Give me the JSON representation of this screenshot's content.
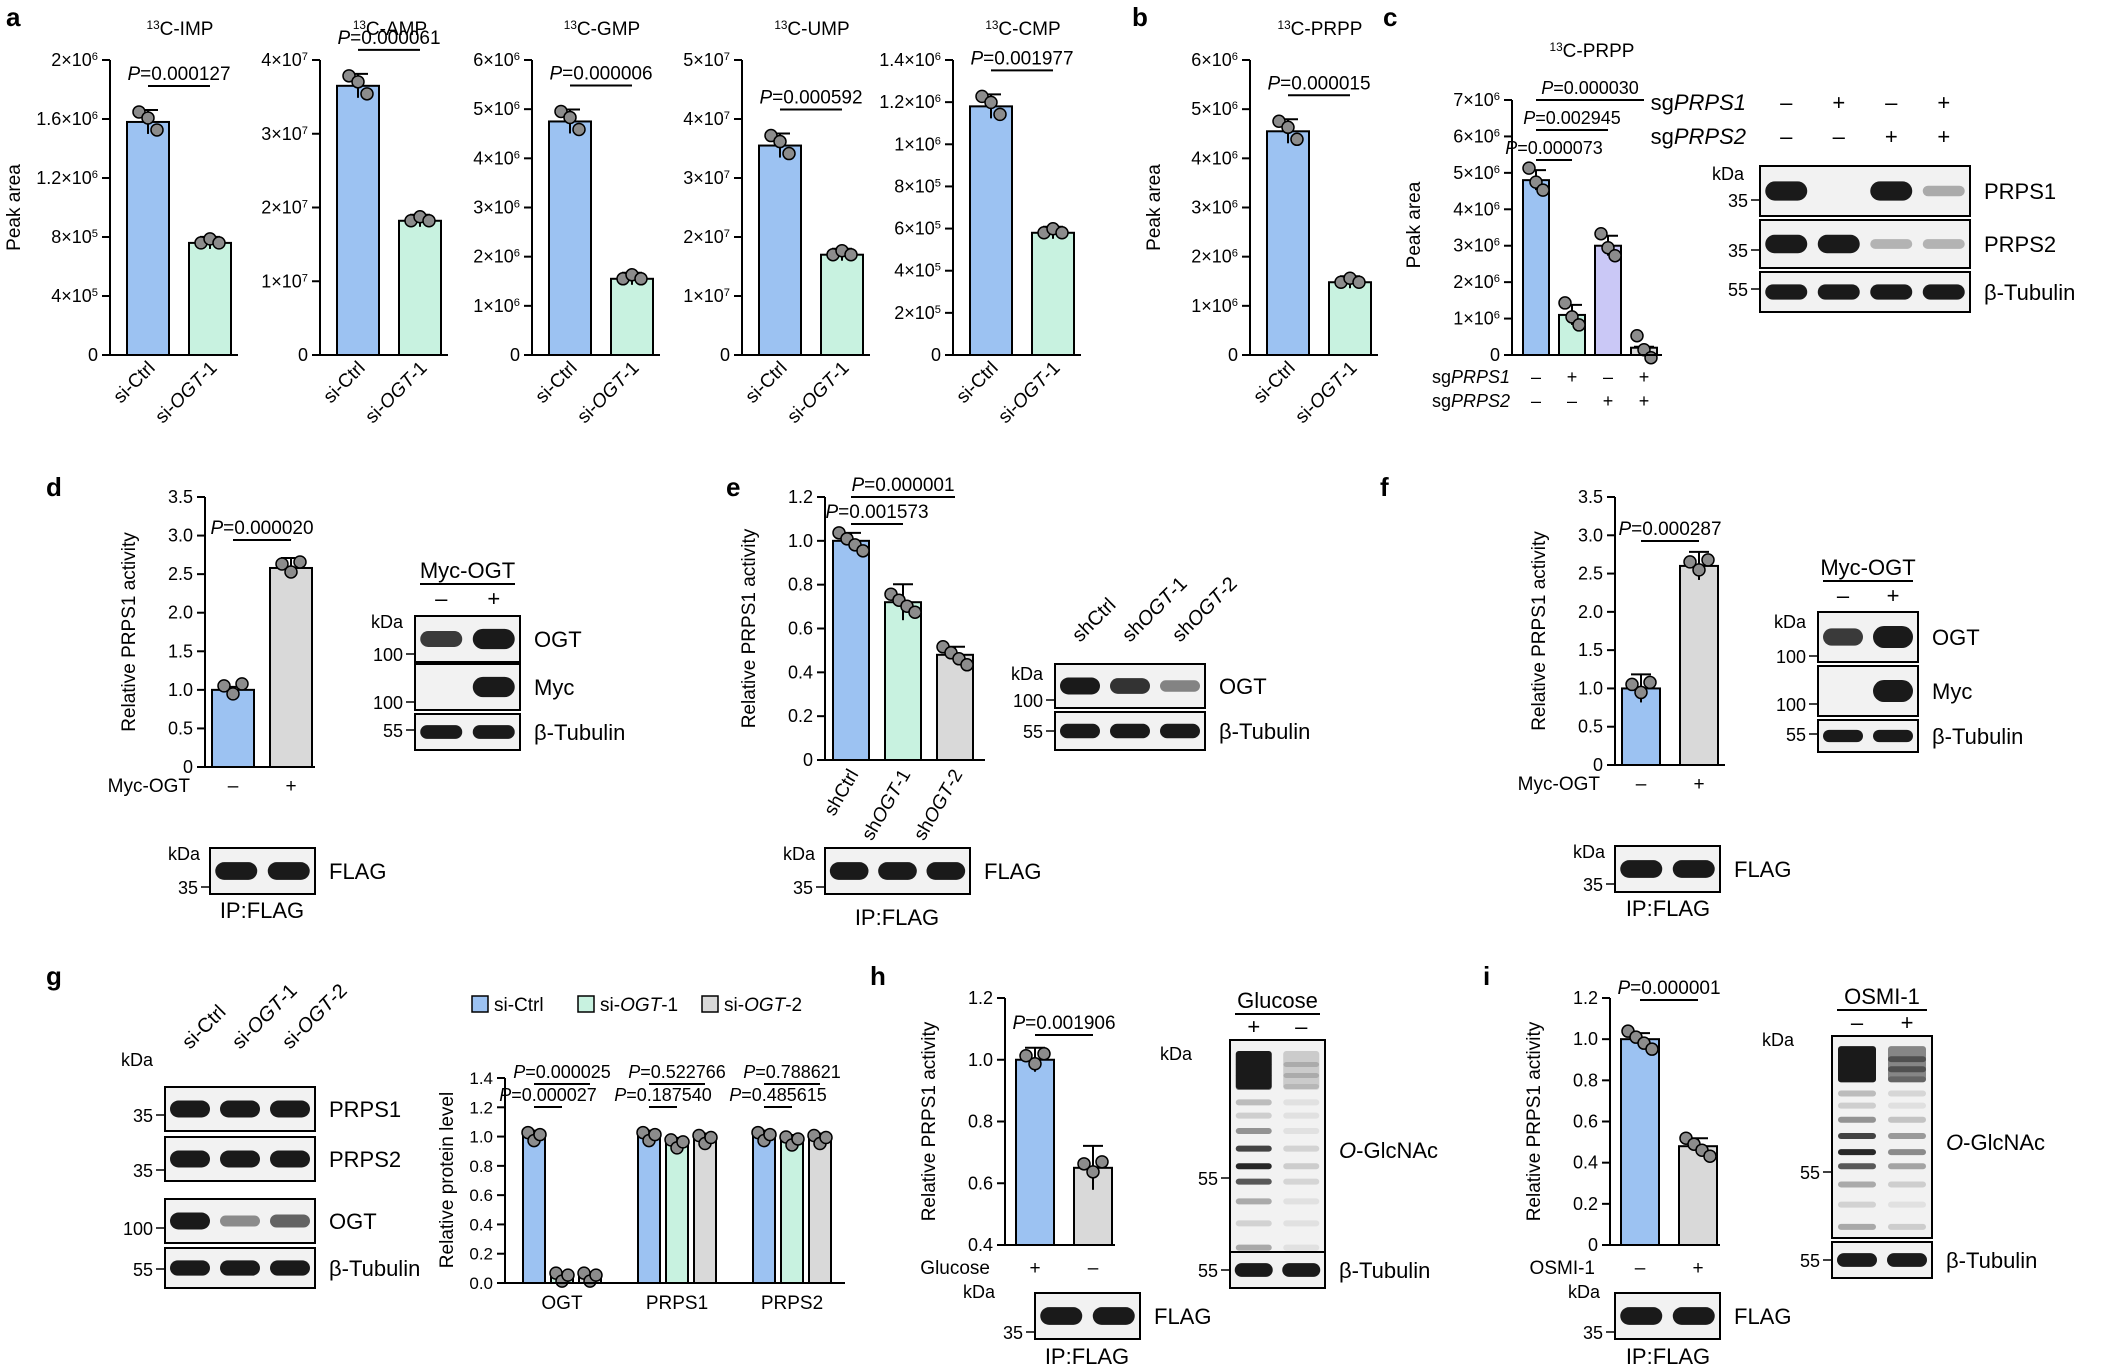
{
  "colors": {
    "blue": "#9cc2f2",
    "green": "#c8f2e0",
    "purple": "#cac8f6",
    "gray": "#d9d9d9",
    "band": "#1a1a1a",
    "blotBg": "#f2f2f2"
  },
  "texts": {
    "peak_area": "Peak area",
    "rel_prps1": "Relative PRPS1 activity",
    "rel_protein": "Relative protein level",
    "kda": "kDa",
    "ip_flag": "IP:FLAG",
    "minus": "–",
    "plus": "+",
    "sg_prefix": "sg",
    "gene_prps1": "PRPS1",
    "gene_prps2": "PRPS2",
    "si_prefix": "si-",
    "ogt_gene": "OGT",
    "ogt1_suffix": "-1",
    "ogt2_suffix": "-2",
    "sh_prefix": "sh",
    "o_prefix": "O",
    "glcnac_suffix": "-GlcNAc",
    "p_italic": "P"
  },
  "blot_labels": {
    "prps1": "PRPS1",
    "prps2": "PRPS2",
    "tubulin": "β-Tubulin",
    "ogt": "OGT",
    "myc": "Myc",
    "flag": "FLAG",
    "myc_ogt": "Myc-OGT",
    "glucose": "Glucose",
    "osmi1": "OSMI-1"
  },
  "mw": {
    "m35": "35",
    "m55": "55",
    "m100": "100"
  },
  "panel_letters": {
    "a": "a",
    "b": "b",
    "c": "c",
    "d": "d",
    "e": "e",
    "f": "f",
    "g": "g",
    "h": "h",
    "i": "i"
  },
  "chart_data": [
    {
      "id": "a1",
      "type": "bar",
      "title": "13C-IMP",
      "title_sup": "13",
      "title_main": "C-IMP",
      "ylabel": "Peak area",
      "categories": [
        "si-Ctrl",
        "si-OGT-1"
      ],
      "values": [
        1.58,
        0.76
      ],
      "unit": "×10^6",
      "ylim": [
        0,
        2
      ],
      "ticks": [
        "0",
        "4×10⁵",
        "8×10⁵",
        "1.2×10⁶",
        "1.6×10⁶",
        "2×10⁶"
      ],
      "p_values": [
        "=0.000127"
      ]
    },
    {
      "id": "a2",
      "type": "bar",
      "title": "13C-AMP",
      "title_sup": "13",
      "title_main": "C-AMP",
      "categories": [
        "si-Ctrl",
        "si-OGT-1"
      ],
      "values": [
        3.65,
        1.82
      ],
      "unit": "×10^7",
      "ylim": [
        0,
        4
      ],
      "ticks": [
        "0",
        "1×10⁷",
        "2×10⁷",
        "3×10⁷",
        "4×10⁷"
      ],
      "p_values": [
        "=0.000061"
      ]
    },
    {
      "id": "a3",
      "type": "bar",
      "title": "13C-GMP",
      "title_sup": "13",
      "title_main": "C-GMP",
      "categories": [
        "si-Ctrl",
        "si-OGT-1"
      ],
      "values": [
        4.75,
        1.55
      ],
      "unit": "×10^6",
      "ylim": [
        0,
        6
      ],
      "ticks": [
        "0",
        "1×10⁶",
        "2×10⁶",
        "3×10⁶",
        "4×10⁶",
        "5×10⁶",
        "6×10⁶"
      ],
      "p_values": [
        "=0.000006"
      ]
    },
    {
      "id": "a4",
      "type": "bar",
      "title": "13C-UMP",
      "title_sup": "13",
      "title_main": "C-UMP",
      "categories": [
        "si-Ctrl",
        "si-OGT-1"
      ],
      "values": [
        3.55,
        1.7
      ],
      "unit": "×10^7",
      "ylim": [
        0,
        5
      ],
      "ticks": [
        "0",
        "1×10⁷",
        "2×10⁷",
        "3×10⁷",
        "4×10⁷",
        "5×10⁷"
      ],
      "p_values": [
        "=0.000592"
      ]
    },
    {
      "id": "a5",
      "type": "bar",
      "title": "13C-CMP",
      "title_sup": "13",
      "title_main": "C-CMP",
      "categories": [
        "si-Ctrl",
        "si-OGT-1"
      ],
      "values": [
        1.18,
        0.58
      ],
      "unit": "×10^6",
      "ylim": [
        0,
        1.4
      ],
      "ticks": [
        "0",
        "2×10⁵",
        "4×10⁵",
        "6×10⁵",
        "8×10⁵",
        "1×10⁶",
        "1.2×10⁶",
        "1.4×10⁶"
      ],
      "p_values": [
        "=0.001977"
      ]
    },
    {
      "id": "b",
      "type": "bar",
      "title": "13C-PRPP",
      "title_sup": "13",
      "title_main": "C-PRPP",
      "ylabel": "Peak area",
      "categories": [
        "si-Ctrl",
        "si-OGT-1"
      ],
      "values": [
        4.55,
        1.48
      ],
      "unit": "×10^6",
      "ylim": [
        0,
        6
      ],
      "ticks": [
        "0",
        "1×10⁶",
        "2×10⁶",
        "3×10⁶",
        "4×10⁶",
        "5×10⁶",
        "6×10⁶"
      ],
      "p_values": [
        "=0.000015"
      ]
    },
    {
      "id": "c",
      "type": "bar",
      "title": "13C-PRPP",
      "title_sup": "13",
      "title_main": "C-PRPP",
      "ylabel": "Peak area",
      "categories": [
        "Ctrl",
        "sgPRPS1",
        "sgPRPS2",
        "sgPRPS1+sgPRPS2"
      ],
      "values": [
        4.8,
        1.1,
        3.0,
        0.2
      ],
      "unit": "×10^6",
      "ylim": [
        0,
        7
      ],
      "ticks": [
        "0",
        "1×10⁶",
        "2×10⁶",
        "3×10⁶",
        "4×10⁶",
        "5×10⁶",
        "6×10⁶",
        "7×10⁶"
      ],
      "p_values": [
        "=0.000030",
        "=0.002945",
        "=0.000073"
      ],
      "rows": [
        {
          "label": "PRPS1",
          "signs": [
            "–",
            "+",
            "–",
            "+"
          ]
        },
        {
          "label": "PRPS2",
          "signs": [
            "–",
            "–",
            "+",
            "+"
          ]
        }
      ]
    },
    {
      "id": "d",
      "type": "bar",
      "ylabel": "Relative PRPS1 activity",
      "categories": [
        "–",
        "+"
      ],
      "row_label": "Myc-OGT",
      "values": [
        1.0,
        2.58
      ],
      "ylim": [
        0,
        3.5
      ],
      "ticks": [
        "0",
        "0.5",
        "1.0",
        "1.5",
        "2.0",
        "2.5",
        "3.0",
        "3.5"
      ],
      "p_values": [
        "=0.000020"
      ]
    },
    {
      "id": "e",
      "type": "bar",
      "ylabel": "Relative PRPS1 activity",
      "categories": [
        "shCtrl",
        "shOGT-1",
        "shOGT-2"
      ],
      "values": [
        1.0,
        0.72,
        0.48
      ],
      "ylim": [
        0,
        1.2
      ],
      "ticks": [
        "0",
        "0.2",
        "0.4",
        "0.6",
        "0.8",
        "1.0",
        "1.2"
      ],
      "p_values": [
        "=0.000001",
        "=0.001573"
      ]
    },
    {
      "id": "f",
      "type": "bar",
      "ylabel": "Relative PRPS1 activity",
      "categories": [
        "–",
        "+"
      ],
      "row_label": "Myc-OGT",
      "values": [
        1.0,
        2.6
      ],
      "ylim": [
        0,
        3.5
      ],
      "ticks": [
        "0",
        "0.5",
        "1.0",
        "1.5",
        "2.0",
        "2.5",
        "3.0",
        "3.5"
      ],
      "p_values": [
        "=0.000287"
      ]
    },
    {
      "id": "g",
      "type": "bar",
      "ylabel": "Relative protein level",
      "categories": [
        "OGT",
        "PRPS1",
        "PRPS2"
      ],
      "series": [
        {
          "name": "si-Ctrl",
          "values": [
            1.0,
            1.0,
            1.0
          ]
        },
        {
          "name": "si-OGT-1",
          "values": [
            0.04,
            0.95,
            0.97
          ]
        },
        {
          "name": "si-OGT-2",
          "values": [
            0.04,
            0.98,
            0.98
          ]
        }
      ],
      "ylim": [
        0,
        1.4
      ],
      "ticks": [
        "0.0",
        "0.2",
        "0.4",
        "0.6",
        "0.8",
        "1.0",
        "1.2",
        "1.4"
      ],
      "p_values": [
        "=0.000025",
        "=0.000027",
        "=0.522766",
        "=0.187540",
        "=0.788621",
        "=0.485615"
      ]
    },
    {
      "id": "h",
      "type": "bar",
      "ylabel": "Relative PRPS1 activity",
      "categories": [
        "+",
        "–"
      ],
      "row_label": "Glucose",
      "values": [
        1.0,
        0.65
      ],
      "ylim": [
        0.4,
        1.2
      ],
      "ticks": [
        "0.4",
        "0.6",
        "0.8",
        "1.0",
        "1.2"
      ],
      "p_values": [
        "=0.001906"
      ]
    },
    {
      "id": "i",
      "type": "bar",
      "ylabel": "Relative PRPS1 activity",
      "categories": [
        "–",
        "+"
      ],
      "row_label": "OSMI-1",
      "values": [
        1.0,
        0.48
      ],
      "ylim": [
        0,
        1.2
      ],
      "ticks": [
        "0",
        "0.2",
        "0.4",
        "0.6",
        "0.8",
        "1.0",
        "1.2"
      ],
      "p_values": [
        "=0.000001"
      ]
    }
  ]
}
